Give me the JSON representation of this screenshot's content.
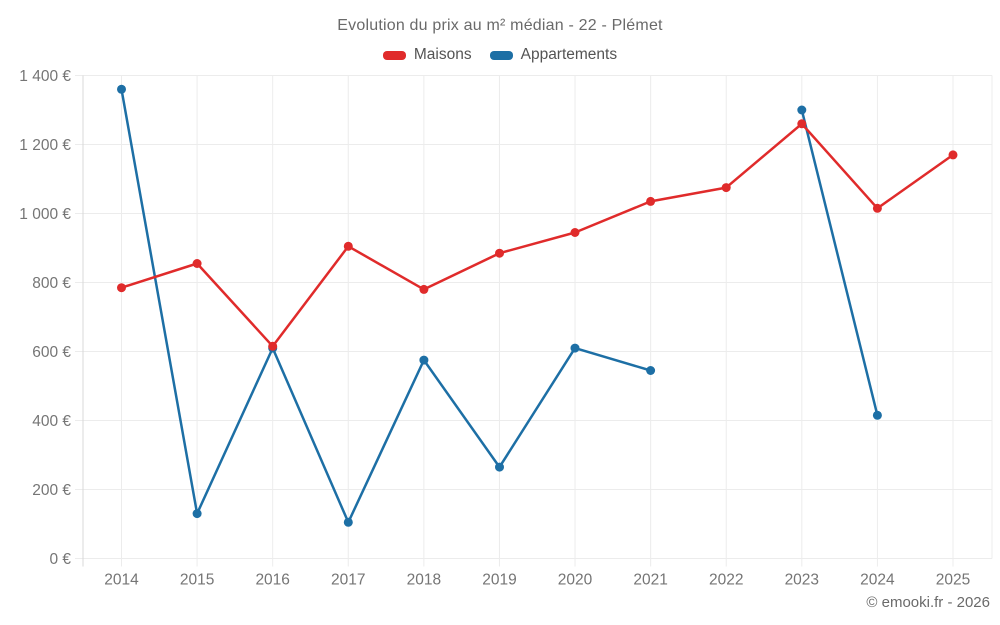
{
  "chart_data": {
    "type": "line",
    "title": "Evolution du prix au m² médian - 22 - Plémet",
    "categories": [
      "2014",
      "2015",
      "2016",
      "2017",
      "2018",
      "2019",
      "2020",
      "2021",
      "2022",
      "2023",
      "2024",
      "2025"
    ],
    "series": [
      {
        "name": "Maisons",
        "color": "#e02b2b",
        "values": [
          785,
          855,
          615,
          905,
          780,
          885,
          945,
          1035,
          1075,
          1260,
          1015,
          1170
        ]
      },
      {
        "name": "Appartements",
        "color": "#1d6fa5",
        "values": [
          1360,
          130,
          610,
          105,
          575,
          265,
          610,
          545,
          null,
          1300,
          415,
          null
        ]
      }
    ],
    "ylim": [
      0,
      1400
    ],
    "ytick_step": 200,
    "ytick_labels": [
      "0 €",
      "200 €",
      "400 €",
      "600 €",
      "800 €",
      "1 000 €",
      "1 200 €",
      "1 400 €"
    ],
    "currency_suffix": "€",
    "grid": true,
    "legend_position": "top"
  },
  "footer": {
    "credit": "© emooki.fr - 2026"
  }
}
